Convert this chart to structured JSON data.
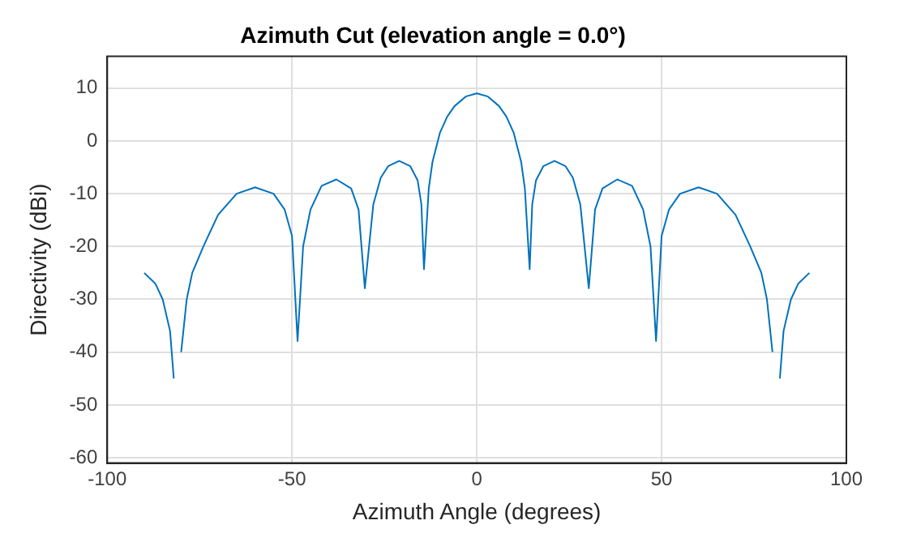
{
  "chart_data": {
    "type": "line",
    "title": "Azimuth Cut (elevation angle = 0.0°)",
    "xlabel": "Azimuth Angle (degrees)",
    "ylabel": "Directivity (dBi)",
    "x": [
      -90,
      -87,
      -85,
      -83,
      -82,
      -81.4,
      -80,
      -78.5,
      -77,
      -74,
      -70,
      -65,
      -60,
      -55,
      -52,
      -50,
      -48.5,
      -47,
      -45,
      -42,
      -38,
      -34,
      -32,
      -30.3,
      -28,
      -26,
      -24,
      -21,
      -18,
      -16,
      -15,
      -14.3,
      -13,
      -12,
      -10,
      -8,
      -6,
      -3,
      0,
      3,
      6,
      8,
      10,
      12,
      13,
      14.3,
      15,
      16,
      18,
      21,
      24,
      26,
      28,
      30.3,
      32,
      34,
      38,
      42,
      45,
      47,
      48.5,
      50,
      52,
      55,
      60,
      65,
      70,
      74,
      77,
      78.5,
      80,
      81.4,
      82,
      83,
      85,
      87,
      90
    ],
    "series": [
      {
        "color": "#0072bd",
        "values": [
          -25,
          -27,
          -30,
          -36,
          -45,
          null,
          -40,
          -30,
          -25,
          -20,
          -14,
          -10,
          -8.8,
          -10,
          -13,
          -18,
          -37.9,
          -20,
          -13,
          -8.5,
          -7.3,
          -9,
          -13,
          -27.9,
          -12,
          -7,
          -4.8,
          -3.8,
          -4.8,
          -7.5,
          -12,
          -24.3,
          -9,
          -4,
          1.5,
          4.6,
          6.6,
          8.4,
          9,
          8.4,
          6.6,
          4.6,
          1.5,
          -4,
          -9,
          -24.3,
          -12,
          -7.5,
          -4.8,
          -3.8,
          -4.8,
          -7,
          -12,
          -27.9,
          -13,
          -9,
          -7.3,
          -8.5,
          -13,
          -20,
          -37.9,
          -18,
          -13,
          -10,
          -8.8,
          -10,
          -14,
          -20,
          -25,
          -30,
          -40,
          null,
          -45,
          -36,
          -30,
          -27,
          -25
        ]
      }
    ],
    "xlim": [
      -100,
      100
    ],
    "xticks": [
      -100,
      -50,
      0,
      50,
      100
    ],
    "ylim": [
      -61,
      16
    ],
    "yticks": [
      -60,
      -50,
      -40,
      -30,
      -20,
      -10,
      0,
      10
    ],
    "grid": true,
    "marker": "none",
    "line_style": "solid"
  }
}
